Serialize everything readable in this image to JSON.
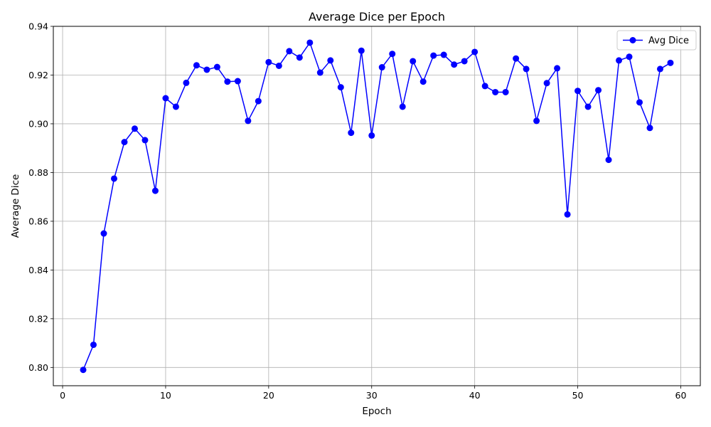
{
  "chart_data": {
    "type": "line",
    "title": "Average Dice per Epoch",
    "xlabel": "Epoch",
    "ylabel": "Average Dice",
    "xlim": [
      -0.9,
      61.9
    ],
    "ylim": [
      0.7925,
      0.94
    ],
    "xticks": [
      0,
      10,
      20,
      30,
      40,
      50,
      60
    ],
    "yticks": [
      0.8,
      0.82,
      0.84,
      0.86,
      0.88,
      0.9,
      0.92,
      0.94
    ],
    "grid": true,
    "legend_position": "top-right",
    "series": [
      {
        "name": "Avg Dice",
        "color": "#0000ff",
        "marker": "circle",
        "x": [
          2,
          3,
          4,
          5,
          6,
          7,
          8,
          9,
          10,
          11,
          12,
          13,
          14,
          15,
          16,
          17,
          18,
          19,
          20,
          21,
          22,
          23,
          24,
          25,
          26,
          27,
          28,
          29,
          30,
          31,
          32,
          33,
          34,
          35,
          36,
          37,
          38,
          39,
          40,
          41,
          42,
          43,
          44,
          45,
          46,
          47,
          48,
          49,
          50,
          51,
          52,
          53,
          54,
          55,
          56,
          57,
          58,
          59
        ],
        "y": [
          0.799,
          0.8093,
          0.855,
          0.8775,
          0.8925,
          0.898,
          0.8933,
          0.8725,
          0.9105,
          0.907,
          0.9168,
          0.924,
          0.9222,
          0.9233,
          0.9173,
          0.9175,
          0.9012,
          0.9093,
          0.9253,
          0.9238,
          0.9298,
          0.9272,
          0.9333,
          0.921,
          0.926,
          0.915,
          0.8963,
          0.93,
          0.8952,
          0.9232,
          0.9287,
          0.907,
          0.9257,
          0.9173,
          0.928,
          0.9283,
          0.9243,
          0.9257,
          0.9295,
          0.9155,
          0.913,
          0.913,
          0.9268,
          0.9225,
          0.9012,
          0.9167,
          0.9228,
          0.8628,
          0.9135,
          0.907,
          0.9138,
          0.8852,
          0.926,
          0.9275,
          0.9088,
          0.8983,
          0.9225,
          0.925
        ]
      }
    ]
  }
}
